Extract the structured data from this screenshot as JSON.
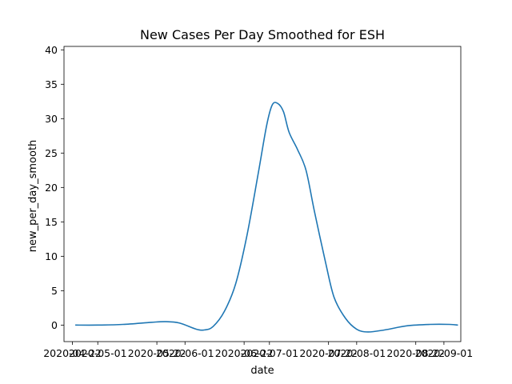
{
  "chart_data": {
    "type": "line",
    "title": "New Cases Per Day Smoothed for ESH",
    "xlabel": "date",
    "ylabel": "new_per_day_smooth",
    "ylim": [
      -2.4,
      40.5
    ],
    "xlim": [
      "2020-04-19",
      "2020-09-07"
    ],
    "x_ticks": [
      "2020-04-22",
      "2020-05-01",
      "2020-05-22",
      "2020-06-01",
      "2020-06-22",
      "2020-07-01",
      "2020-07-22",
      "2020-08-01",
      "2020-08-22",
      "2020-09-01"
    ],
    "y_ticks": [
      0,
      5,
      10,
      15,
      20,
      25,
      30,
      35,
      40
    ],
    "grid": false,
    "legend": "none",
    "series": [
      {
        "color": "#1f77b4",
        "points": [
          [
            "2020-04-23",
            0.0
          ],
          [
            "2020-05-01",
            0.0
          ],
          [
            "2020-05-10",
            0.1
          ],
          [
            "2020-05-20",
            0.4
          ],
          [
            "2020-05-25",
            0.5
          ],
          [
            "2020-05-30",
            0.3
          ],
          [
            "2020-06-05",
            -0.6
          ],
          [
            "2020-06-08",
            -0.7
          ],
          [
            "2020-06-11",
            -0.2
          ],
          [
            "2020-06-15",
            2.0
          ],
          [
            "2020-06-19",
            6.0
          ],
          [
            "2020-06-23",
            13.0
          ],
          [
            "2020-06-27",
            22.0
          ],
          [
            "2020-06-30",
            29.0
          ],
          [
            "2020-07-02",
            32.0
          ],
          [
            "2020-07-04",
            32.2
          ],
          [
            "2020-07-06",
            31.0
          ],
          [
            "2020-07-08",
            28.0
          ],
          [
            "2020-07-11",
            25.5
          ],
          [
            "2020-07-14",
            22.5
          ],
          [
            "2020-07-17",
            16.5
          ],
          [
            "2020-07-21",
            9.0
          ],
          [
            "2020-07-24",
            4.0
          ],
          [
            "2020-07-28",
            1.0
          ],
          [
            "2020-08-01",
            -0.6
          ],
          [
            "2020-08-05",
            -1.0
          ],
          [
            "2020-08-11",
            -0.7
          ],
          [
            "2020-08-19",
            -0.1
          ],
          [
            "2020-08-27",
            0.1
          ],
          [
            "2020-09-03",
            0.1
          ],
          [
            "2020-09-06",
            0.0
          ]
        ]
      }
    ]
  }
}
